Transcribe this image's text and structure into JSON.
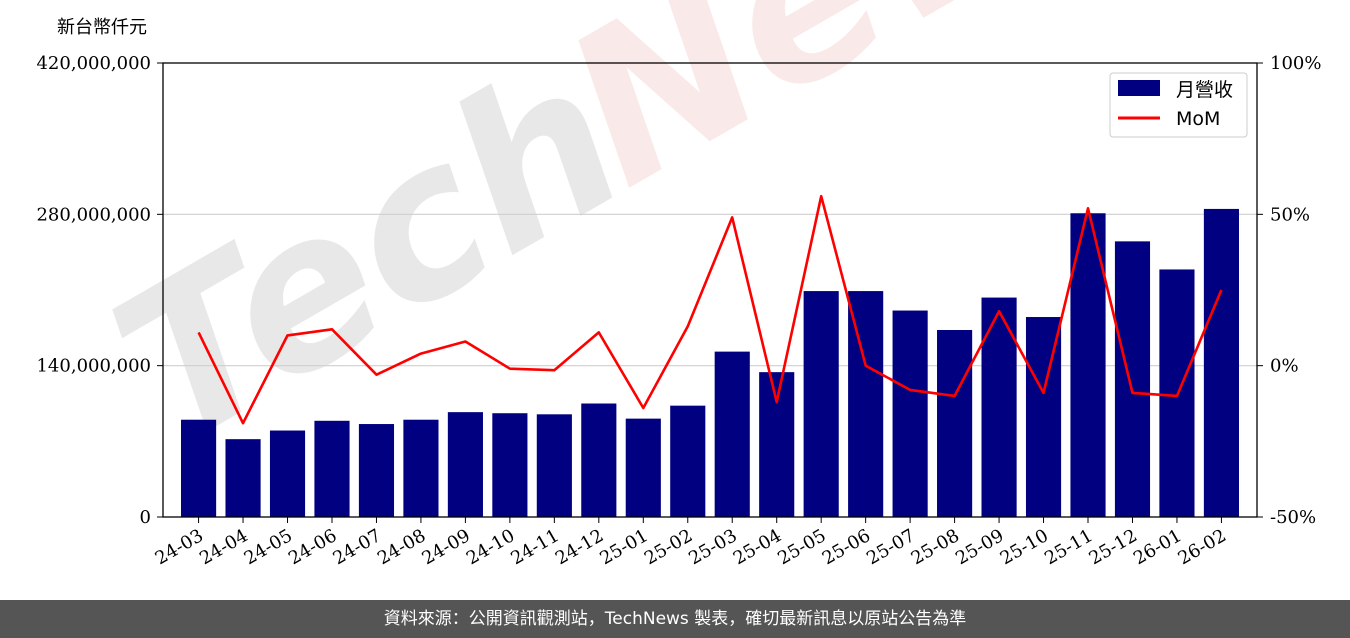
{
  "chart_data": {
    "type": "bar",
    "unit_label": "新台幣仟元",
    "categories": [
      "24-03",
      "24-04",
      "24-05",
      "24-06",
      "24-07",
      "24-08",
      "24-09",
      "24-10",
      "24-11",
      "24-12",
      "25-01",
      "25-02",
      "25-03",
      "25-04",
      "25-05",
      "25-06",
      "25-07",
      "25-08",
      "25-09",
      "25-10",
      "25-11",
      "25-12",
      "26-01",
      "26-02"
    ],
    "series": [
      {
        "name": "月營收",
        "axis": "left",
        "color": "#000080",
        "values": [
          90000000,
          72000000,
          80000000,
          89000000,
          86000000,
          90000000,
          97000000,
          96000000,
          95000000,
          105000000,
          91000000,
          103000000,
          153000000,
          134000000,
          209000000,
          209000000,
          191000000,
          173000000,
          203000000,
          185000000,
          281000000,
          255000000,
          229000000,
          285000000
        ]
      },
      {
        "name": "MoM",
        "axis": "right",
        "color": "#ff0000",
        "values": [
          11,
          -19,
          10,
          12,
          -3,
          4,
          8,
          -1,
          -1.5,
          11,
          -14,
          13,
          49,
          -12,
          56,
          0,
          -8,
          -10,
          18,
          -9,
          52,
          -9,
          -10,
          25
        ]
      }
    ],
    "ylim_left": [
      0,
      420000000
    ],
    "ylim_right": [
      -50,
      100
    ],
    "yticks_left": [
      "0",
      "140,000,000",
      "280,000,000",
      "420,000,000"
    ],
    "yticks_right": [
      "-50%",
      "0%",
      "50%",
      "100%"
    ],
    "grid": "horizontal",
    "legend": "top-right"
  },
  "watermark": {
    "part1": "Tech",
    "part2": "News"
  },
  "footer": {
    "text": "資料來源：公開資訊觀測站，TechNews 製表，確切最新訊息以原站公告為準"
  }
}
